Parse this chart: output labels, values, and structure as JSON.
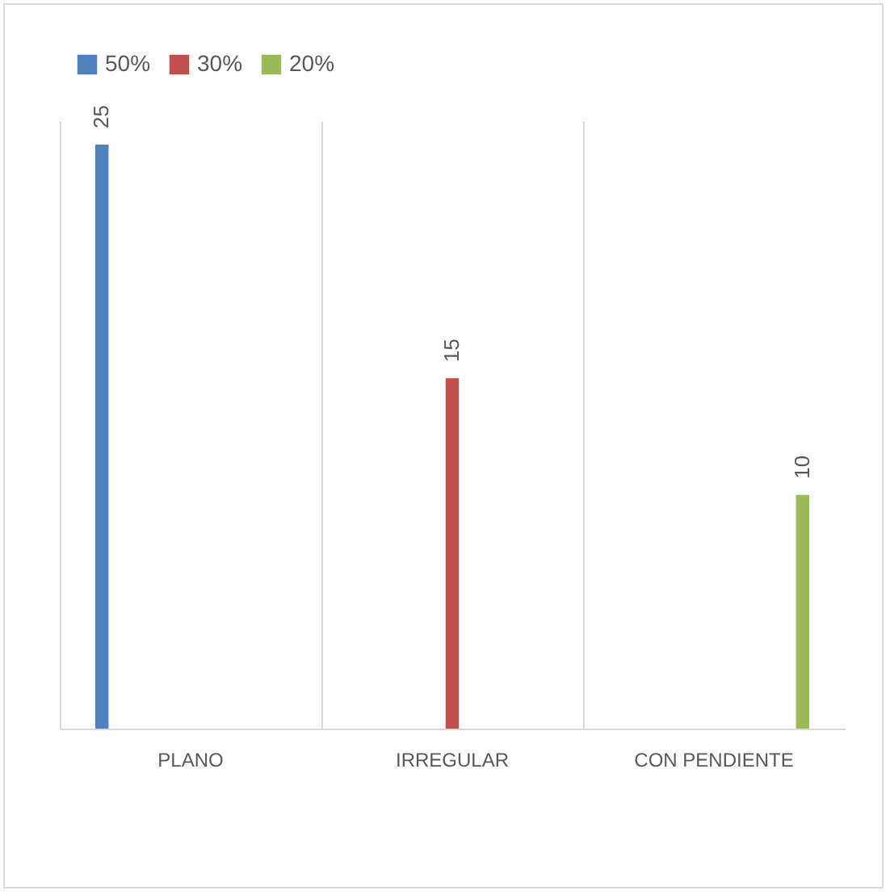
{
  "chart_data": {
    "type": "bar",
    "categories": [
      "PLANO",
      "IRREGULAR",
      "CON PENDIENTE"
    ],
    "series": [
      {
        "name": "50%",
        "color": "#4f81bd",
        "values": [
          25,
          null,
          null
        ]
      },
      {
        "name": "30%",
        "color": "#c0504d",
        "values": [
          null,
          15,
          null
        ]
      },
      {
        "name": "20%",
        "color": "#9bbb59",
        "values": [
          null,
          null,
          10
        ]
      }
    ],
    "data_labels": true,
    "legend": "top",
    "grid": "x"
  }
}
